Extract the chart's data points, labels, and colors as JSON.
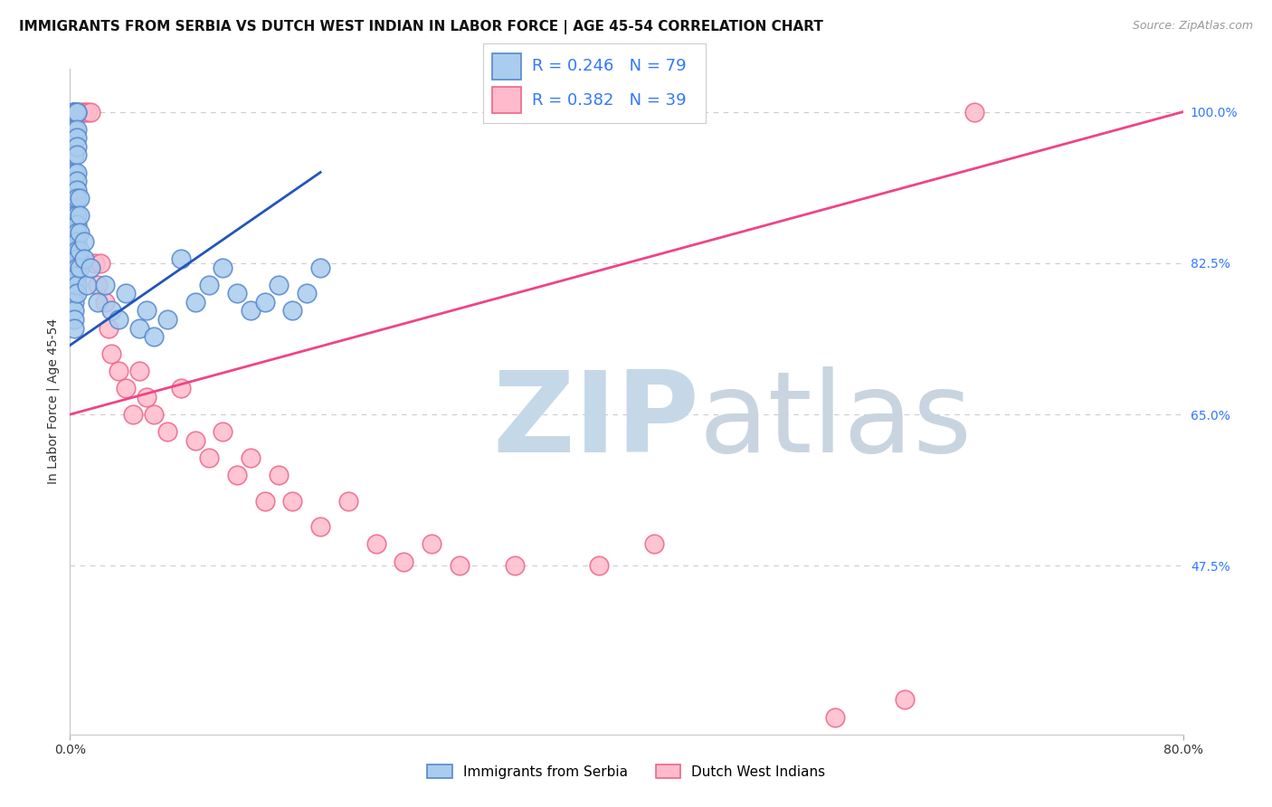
{
  "title": "IMMIGRANTS FROM SERBIA VS DUTCH WEST INDIAN IN LABOR FORCE | AGE 45-54 CORRELATION CHART",
  "source_text": "Source: ZipAtlas.com",
  "ylabel": "In Labor Force | Age 45-54",
  "xlim": [
    0.0,
    80.0
  ],
  "ylim": [
    28.0,
    105.0
  ],
  "yticks": [
    47.5,
    65.0,
    82.5,
    100.0
  ],
  "grid_color": "#cccccc",
  "background_color": "#ffffff",
  "blue_line_color": "#2255bb",
  "pink_line_color": "#ee4488",
  "legend_label_serbia": "Immigrants from Serbia",
  "legend_label_dwi": "Dutch West Indians",
  "serbia_scatter_x": [
    0.3,
    0.3,
    0.3,
    0.3,
    0.3,
    0.3,
    0.3,
    0.3,
    0.3,
    0.3,
    0.3,
    0.3,
    0.3,
    0.3,
    0.3,
    0.3,
    0.3,
    0.3,
    0.3,
    0.3,
    0.3,
    0.3,
    0.3,
    0.3,
    0.3,
    0.3,
    0.3,
    0.3,
    0.3,
    0.3,
    0.5,
    0.5,
    0.5,
    0.5,
    0.5,
    0.5,
    0.5,
    0.5,
    0.5,
    0.5,
    0.5,
    0.5,
    0.5,
    0.5,
    0.5,
    0.5,
    0.5,
    0.5,
    0.5,
    0.5,
    0.7,
    0.7,
    0.7,
    0.7,
    0.7,
    1.0,
    1.0,
    1.2,
    1.5,
    2.0,
    2.5,
    3.0,
    3.5,
    4.0,
    5.0,
    5.5,
    6.0,
    7.0,
    8.0,
    9.0,
    10.0,
    11.0,
    12.0,
    13.0,
    14.0,
    15.0,
    16.0,
    17.0,
    18.0
  ],
  "serbia_scatter_y": [
    100.0,
    100.0,
    100.0,
    100.0,
    100.0,
    100.0,
    100.0,
    100.0,
    98.0,
    97.0,
    95.0,
    93.0,
    92.0,
    91.0,
    90.0,
    89.0,
    88.0,
    87.0,
    86.0,
    85.0,
    84.0,
    83.0,
    82.0,
    81.0,
    80.0,
    79.0,
    78.0,
    77.0,
    76.0,
    75.0,
    100.0,
    100.0,
    98.0,
    97.0,
    96.0,
    95.0,
    93.0,
    92.0,
    91.0,
    90.0,
    88.0,
    87.0,
    86.0,
    85.0,
    84.0,
    83.0,
    82.0,
    81.0,
    80.0,
    79.0,
    90.0,
    88.0,
    86.0,
    84.0,
    82.0,
    85.0,
    83.0,
    80.0,
    82.0,
    78.0,
    80.0,
    77.0,
    76.0,
    79.0,
    75.0,
    77.0,
    74.0,
    76.0,
    83.0,
    78.0,
    80.0,
    82.0,
    79.0,
    77.0,
    78.0,
    80.0,
    77.0,
    79.0,
    82.0
  ],
  "dwi_scatter_x": [
    0.5,
    0.8,
    1.0,
    1.2,
    1.5,
    1.8,
    2.0,
    2.2,
    2.5,
    2.8,
    3.0,
    3.5,
    4.0,
    4.5,
    5.0,
    5.5,
    6.0,
    7.0,
    8.0,
    9.0,
    10.0,
    11.0,
    12.0,
    13.0,
    14.0,
    15.0,
    16.0,
    18.0,
    20.0,
    22.0,
    24.0,
    26.0,
    28.0,
    32.0,
    38.0,
    42.0,
    55.0,
    60.0,
    65.0
  ],
  "dwi_scatter_y": [
    100.0,
    100.0,
    100.0,
    100.0,
    100.0,
    82.5,
    80.0,
    82.5,
    78.0,
    75.0,
    72.0,
    70.0,
    68.0,
    65.0,
    70.0,
    67.0,
    65.0,
    63.0,
    68.0,
    62.0,
    60.0,
    63.0,
    58.0,
    60.0,
    55.0,
    58.0,
    55.0,
    52.0,
    55.0,
    50.0,
    48.0,
    50.0,
    47.5,
    47.5,
    47.5,
    50.0,
    30.0,
    32.0,
    100.0
  ],
  "blue_line_x0": 0.0,
  "blue_line_y0": 73.0,
  "blue_line_x1": 18.0,
  "blue_line_y1": 93.0,
  "pink_line_x0": 0.0,
  "pink_line_y0": 65.0,
  "pink_line_x1": 80.0,
  "pink_line_y1": 100.0,
  "title_fontsize": 11,
  "tick_fontsize": 10,
  "legend_fontsize": 13
}
